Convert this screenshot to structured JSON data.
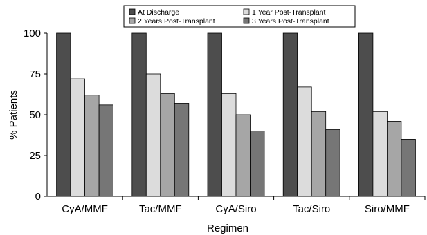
{
  "chart_data": {
    "type": "bar",
    "title": "",
    "xlabel": "Regimen",
    "ylabel": "% Patients",
    "ylim": [
      0,
      100
    ],
    "yticks": [
      0,
      25,
      50,
      75,
      100
    ],
    "grid": false,
    "legend_position": "top",
    "categories": [
      "CyA/MMF",
      "Tac/MMF",
      "CyA/Siro",
      "Tac/Siro",
      "Siro/MMF"
    ],
    "series": [
      {
        "name": "At Discharge",
        "color": "#4d4d4d",
        "values": [
          100,
          100,
          100,
          100,
          100
        ]
      },
      {
        "name": "1 Year Post-Transplant",
        "color": "#dcdcdc",
        "values": [
          72,
          75,
          63,
          67,
          52
        ]
      },
      {
        "name": "2 Years Post-Transplant",
        "color": "#a6a6a6",
        "values": [
          62,
          63,
          50,
          52,
          46
        ]
      },
      {
        "name": "3  Years Post-Transplant",
        "color": "#767676",
        "values": [
          56,
          57,
          40,
          41,
          35
        ]
      }
    ]
  }
}
